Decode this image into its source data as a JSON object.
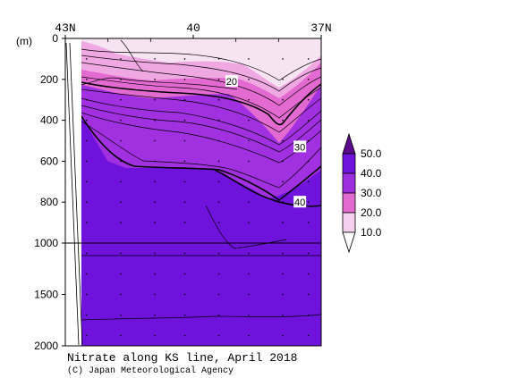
{
  "chart_data": {
    "type": "contour-section",
    "title": "Nitrate along KS line, April 2018",
    "credit": "(C) Japan Meteorological Agency",
    "y_unit": "(m)",
    "x_ticks": [
      "43N",
      "40",
      "37N"
    ],
    "x_tick_values": [
      43,
      40,
      37
    ],
    "x_range": [
      43,
      37
    ],
    "y_ticks": [
      "0",
      "200",
      "400",
      "600",
      "800",
      "1000",
      "1500",
      "2000"
    ],
    "y_tick_values": [
      0,
      200,
      400,
      600,
      800,
      1000,
      1500,
      2000
    ],
    "y_range": [
      0,
      2000
    ],
    "y_scale": "0-1000 m upper panel, 1000-2000 m compressed lower panel",
    "contour_labels": [
      {
        "text": "20",
        "lat": 39.1,
        "depth": 210
      },
      {
        "text": "30",
        "lat": 37.5,
        "depth": 530
      },
      {
        "text": "40",
        "lat": 37.5,
        "depth": 800
      }
    ],
    "colorbar": {
      "labels": [
        "50.0",
        "40.0",
        "30.0",
        "20.0",
        "10.0"
      ],
      "levels": [
        50,
        40,
        30,
        20,
        10
      ],
      "colors": [
        "#5a0a8a",
        "#6e12dc",
        "#9c2ee0",
        "#e36ad0",
        "#f5d0ef",
        "#ffffff"
      ]
    },
    "bands": [
      {
        "range": "<10",
        "color": "#f7e4f3"
      },
      {
        "range": "10-20",
        "color": "#f0a8e3"
      },
      {
        "range": "20-30",
        "color": "#e36ad0"
      },
      {
        "range": "30-40",
        "color": "#a030e0"
      },
      {
        "range": ">40",
        "color": "#6e12dc"
      }
    ]
  }
}
